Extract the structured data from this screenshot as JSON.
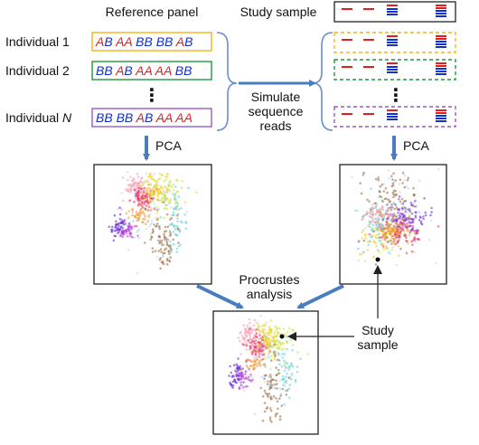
{
  "headers": {
    "reference_panel": "Reference panel",
    "study_sample": "Study sample"
  },
  "individuals": [
    {
      "prefix": "Individual ",
      "num": "1",
      "italic_num": false,
      "genotypes": [
        "AB",
        "AA",
        "BB",
        "BB",
        "AB"
      ],
      "box_color": "#f5b21a",
      "geno_right": true
    },
    {
      "prefix": "Individual ",
      "num": "2",
      "italic_num": false,
      "genotypes": [
        "BB",
        "AB",
        "AA",
        "AA",
        "BB"
      ],
      "box_color": "#1f9a3f",
      "geno_right": false
    },
    {
      "prefix": "Individual ",
      "num": "N",
      "italic_num": true,
      "genotypes": [
        "BB",
        "BB",
        "AB",
        "AA",
        "AA"
      ],
      "box_color": "#9b59c6",
      "geno_right": false
    }
  ],
  "ellipsis": "⋮",
  "simulate_text": [
    "Simulate",
    "sequence",
    "reads"
  ],
  "pca_label": "PCA",
  "procrustes_text": [
    "Procrustes",
    "analysis"
  ],
  "study_sample_annotation": [
    "Study",
    "sample"
  ],
  "colors": {
    "allele_A": "#e02020",
    "allele_B": "#1030d0",
    "arrow": "#4a7cc0",
    "dashed_boxes": [
      "#f5b21a",
      "#1f9a3f",
      "#9b59c6"
    ]
  }
}
